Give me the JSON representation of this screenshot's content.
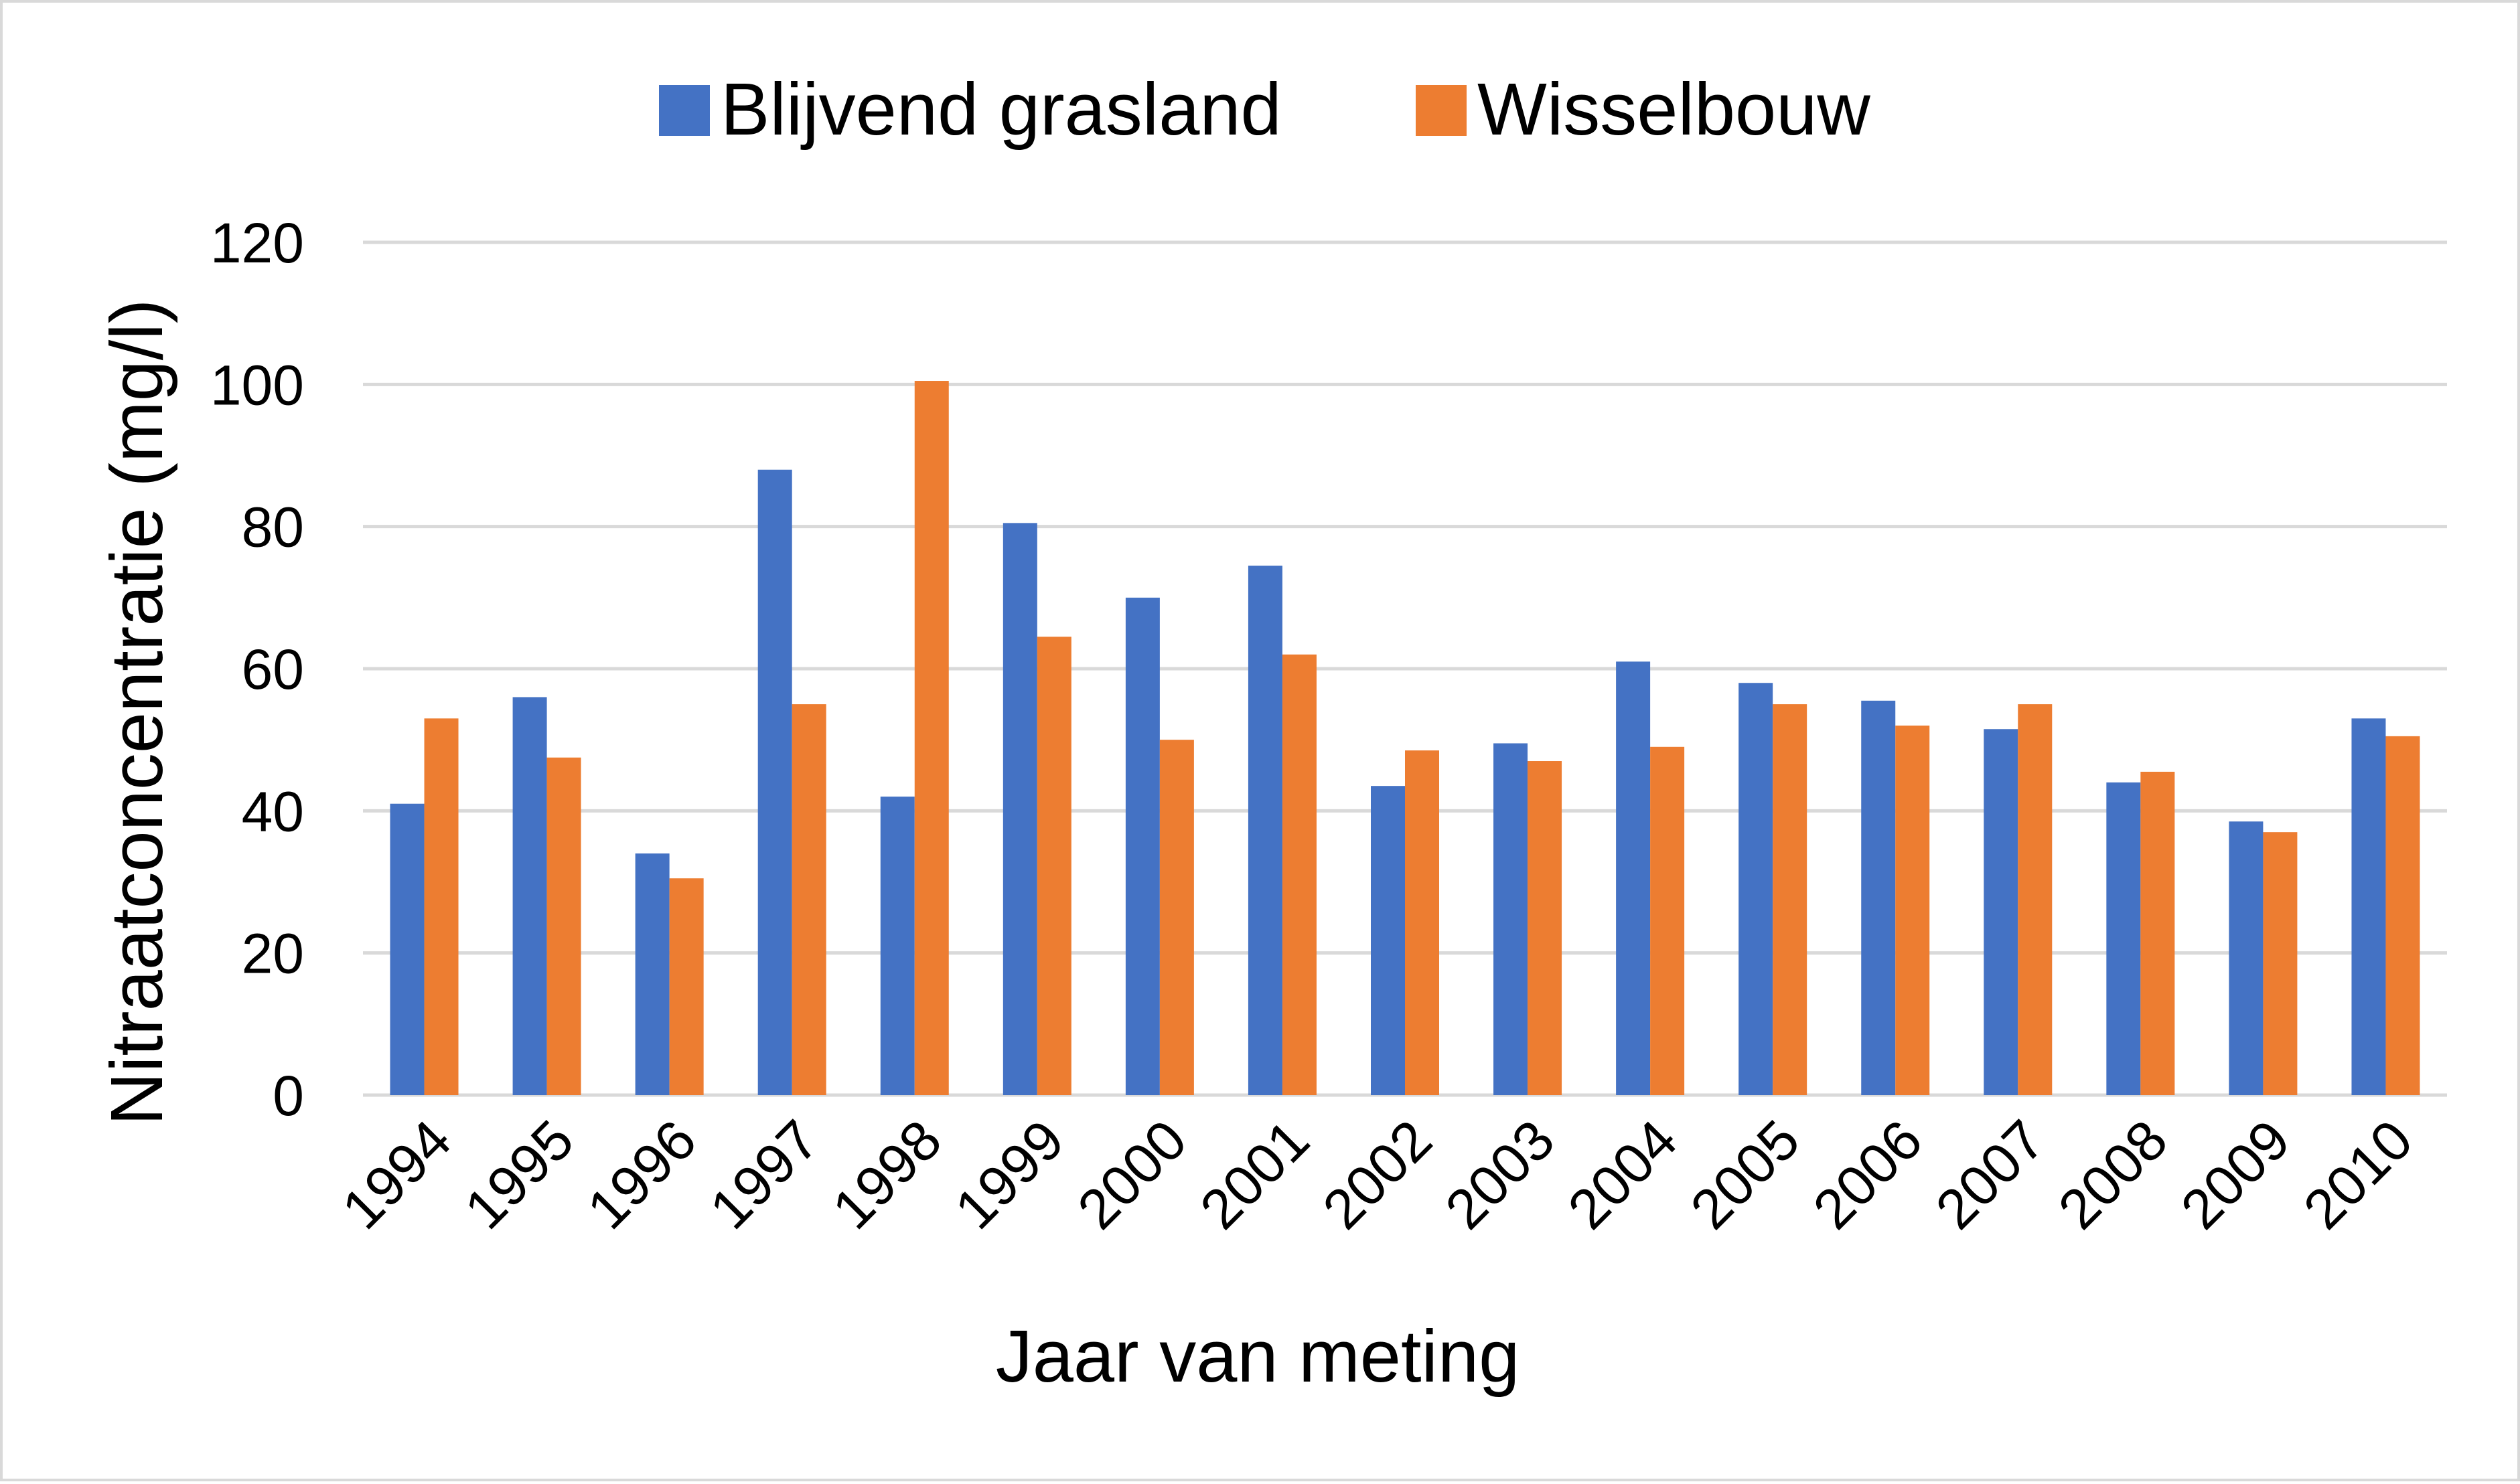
{
  "chart_data": {
    "type": "bar",
    "title": "",
    "xlabel": "Jaar van meting",
    "ylabel": "Nitraatconcentratie (mg/l)",
    "ylim": [
      0,
      120
    ],
    "yticks": [
      "0",
      "20",
      "40",
      "60",
      "80",
      "100",
      "120"
    ],
    "grid": "horizontal",
    "legend_position": "top",
    "categories": [
      "1994",
      "1995",
      "1996",
      "1997",
      "1998",
      "1999",
      "2000",
      "2001",
      "2002",
      "2003",
      "2004",
      "2005",
      "2006",
      "2007",
      "2008",
      "2009",
      "2010"
    ],
    "series": [
      {
        "name": "Blijvend grasland",
        "color": "#4472c4",
        "values": [
          41,
          56,
          34,
          88,
          42,
          80.5,
          70,
          74.5,
          43.5,
          49.5,
          61,
          58,
          55.5,
          51.5,
          44,
          38.5,
          53
        ]
      },
      {
        "name": "Wisselbouw",
        "color": "#ed7d31",
        "values": [
          53,
          47.5,
          30.5,
          55,
          100.5,
          64.5,
          50,
          62,
          48.5,
          47,
          49,
          55,
          52,
          55,
          45.5,
          37,
          50.5
        ]
      }
    ]
  }
}
